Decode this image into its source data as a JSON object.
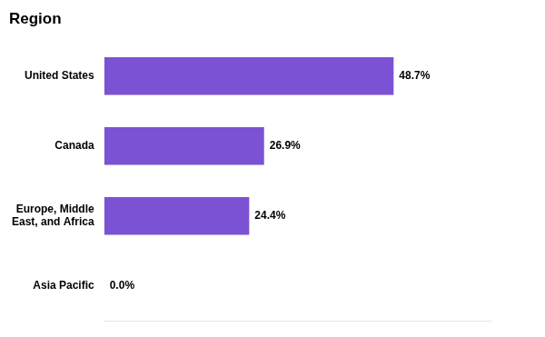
{
  "chart_data": {
    "type": "bar",
    "orientation": "horizontal",
    "title": "Region",
    "categories": [
      "United States",
      "Canada",
      "Europe, Middle\nEast, and Africa",
      "Asia Pacific"
    ],
    "values": [
      48.7,
      26.9,
      24.4,
      0.0
    ],
    "value_labels": [
      "48.7%",
      "26.9%",
      "24.4%",
      "0.0%"
    ],
    "data_labels": true,
    "color": "#7B52D3",
    "xlim": [
      0,
      65
    ],
    "grid": false,
    "tick_labels": "y"
  }
}
